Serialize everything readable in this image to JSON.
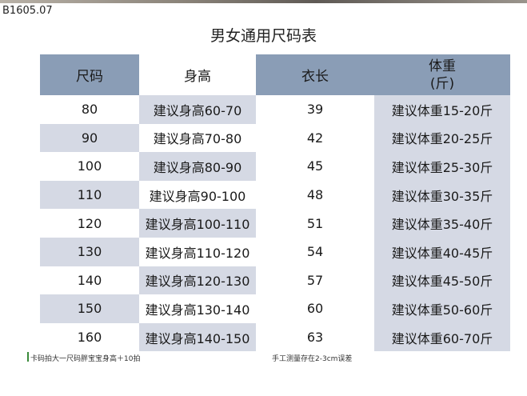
{
  "code": "B1605.07",
  "title": "男女通用尺码表",
  "headers": [
    "尺码",
    "身高",
    "衣长",
    "体重",
    "(斤)"
  ],
  "rows": [
    {
      "size": "80",
      "height": "建议身高60-70",
      "length": "39",
      "weight": "建议体重15-20斤"
    },
    {
      "size": "90",
      "height": "建议身高70-80",
      "length": "42",
      "weight": "建议体重20-25斤"
    },
    {
      "size": "100",
      "height": "建议身高80-90",
      "length": "45",
      "weight": "建议体重25-30斤"
    },
    {
      "size": "110",
      "height": "建议身高90-100",
      "length": "48",
      "weight": "建议体重30-35斤"
    },
    {
      "size": "120",
      "height": "建议身高100-110",
      "length": "51",
      "weight": "建议体重35-40斤"
    },
    {
      "size": "130",
      "height": "建议身高110-120",
      "length": "54",
      "weight": "建议体重40-45斤"
    },
    {
      "size": "140",
      "height": "建议身高120-130",
      "length": "57",
      "weight": "建议体重45-50斤"
    },
    {
      "size": "150",
      "height": "建议身高130-140",
      "length": "60",
      "weight": "建议体重50-60斤"
    },
    {
      "size": "160",
      "height": "建议身高140-150",
      "length": "63",
      "weight": "建议体重60-70斤"
    }
  ],
  "notes": {
    "left": "卡码拍大一尺码胖宝宝身高＋10拍",
    "right": "手工测量存在2-3cm误差"
  },
  "colors": {
    "header_dark": "#8a9db6",
    "row_alt": "#d5d9e4"
  }
}
